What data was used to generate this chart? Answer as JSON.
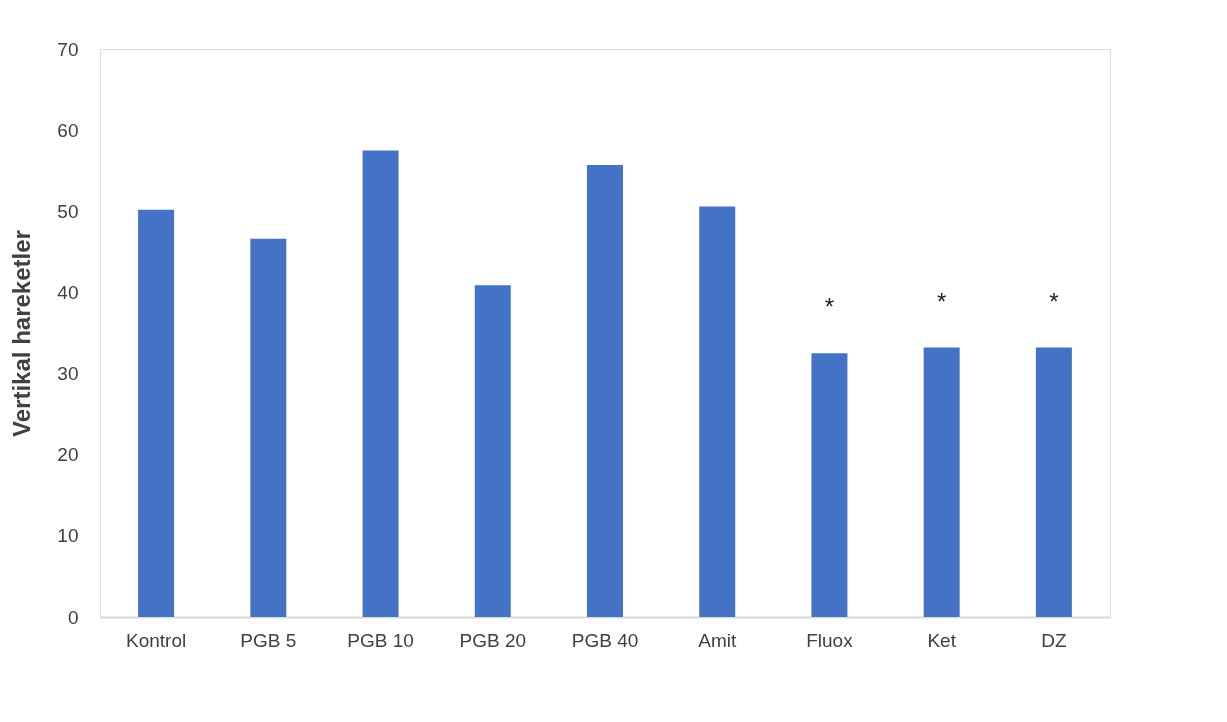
{
  "chart_data": {
    "type": "bar",
    "ylabel": "Vertikal hareketler",
    "categories": [
      "Kontrol",
      "PGB 5",
      "PGB 10",
      "PGB 20",
      "PGB 40",
      "Amit",
      "Fluox",
      "Ket",
      "DZ"
    ],
    "values": [
      50.2,
      46.6,
      57.5,
      40.9,
      55.7,
      50.6,
      32.5,
      33.2,
      33.2
    ],
    "color": "#4472c4",
    "ylim": [
      0,
      70
    ],
    "yticks": [
      0,
      10,
      20,
      30,
      40,
      50,
      60,
      70
    ],
    "grid": false,
    "annotations": [
      {
        "text": "*",
        "x": "Fluox",
        "y": 32.5
      },
      {
        "text": "*",
        "x": "Ket",
        "y": 33.2
      },
      {
        "text": "*",
        "x": "DZ",
        "y": 33.2
      }
    ]
  }
}
